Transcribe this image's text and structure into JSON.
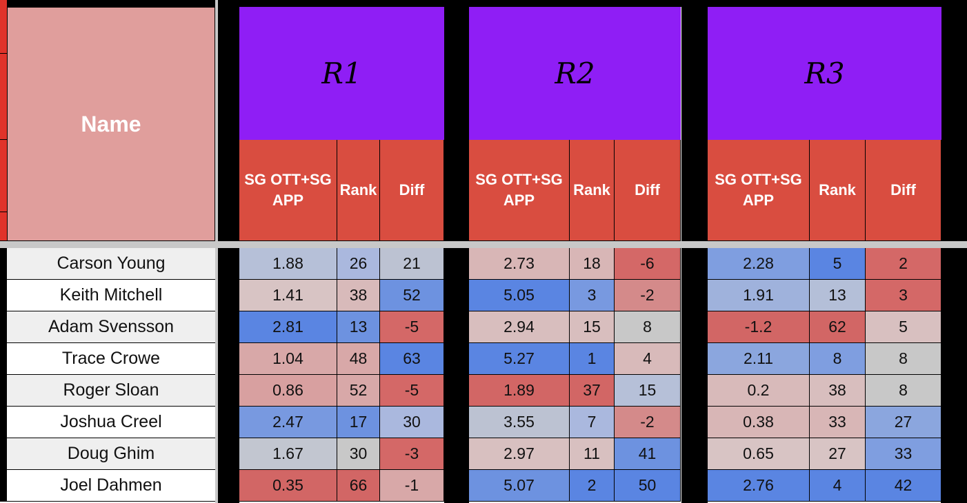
{
  "header": {
    "name_label": "Name",
    "rounds": [
      {
        "label": "R1",
        "sub": [
          "SG OTT+SG APP",
          "Rank",
          "Diff"
        ]
      },
      {
        "label": "R2",
        "sub": [
          "SG OTT+SG APP",
          "Rank",
          "Diff"
        ]
      },
      {
        "label": "R3",
        "sub": [
          "SG OTT+SG APP",
          "Rank",
          "Diff"
        ]
      }
    ]
  },
  "colors": {
    "purple": "#8f1ef5",
    "subheader_red": "#d94d40",
    "name_header_pink": "#e09e9c",
    "strongest_blue": "#5a85e2",
    "strongest_red": "#d26665"
  },
  "rows": [
    {
      "name": "Carson Young",
      "rounds": [
        {
          "sg": "1.88",
          "rank": "26",
          "diff": "21"
        },
        {
          "sg": "2.73",
          "rank": "18",
          "diff": "-6"
        },
        {
          "sg": "2.28",
          "rank": "5",
          "diff": "2"
        }
      ]
    },
    {
      "name": "Keith Mitchell",
      "rounds": [
        {
          "sg": "1.41",
          "rank": "38",
          "diff": "52"
        },
        {
          "sg": "5.05",
          "rank": "3",
          "diff": "-2"
        },
        {
          "sg": "1.91",
          "rank": "13",
          "diff": "3"
        }
      ]
    },
    {
      "name": "Adam Svensson",
      "rounds": [
        {
          "sg": "2.81",
          "rank": "13",
          "diff": "-5"
        },
        {
          "sg": "2.94",
          "rank": "15",
          "diff": "8"
        },
        {
          "sg": "-1.2",
          "rank": "62",
          "diff": "5"
        }
      ]
    },
    {
      "name": "Trace Crowe",
      "rounds": [
        {
          "sg": "1.04",
          "rank": "48",
          "diff": "63"
        },
        {
          "sg": "5.27",
          "rank": "1",
          "diff": "4"
        },
        {
          "sg": "2.11",
          "rank": "8",
          "diff": "8"
        }
      ]
    },
    {
      "name": "Roger Sloan",
      "rounds": [
        {
          "sg": "0.86",
          "rank": "52",
          "diff": "-5"
        },
        {
          "sg": "1.89",
          "rank": "37",
          "diff": "15"
        },
        {
          "sg": "0.2",
          "rank": "38",
          "diff": "8"
        }
      ]
    },
    {
      "name": "Joshua Creel",
      "rounds": [
        {
          "sg": "2.47",
          "rank": "17",
          "diff": "30"
        },
        {
          "sg": "3.55",
          "rank": "7",
          "diff": "-2"
        },
        {
          "sg": "0.38",
          "rank": "33",
          "diff": "27"
        }
      ]
    },
    {
      "name": "Doug Ghim",
      "rounds": [
        {
          "sg": "1.67",
          "rank": "30",
          "diff": "-3"
        },
        {
          "sg": "2.97",
          "rank": "11",
          "diff": "41"
        },
        {
          "sg": "0.65",
          "rank": "27",
          "diff": "33"
        }
      ]
    },
    {
      "name": "Joel Dahmen",
      "rounds": [
        {
          "sg": "0.35",
          "rank": "66",
          "diff": "-1"
        },
        {
          "sg": "5.07",
          "rank": "2",
          "diff": "50"
        },
        {
          "sg": "2.76",
          "rank": "4",
          "diff": "42"
        }
      ]
    }
  ],
  "cell_colors": [
    [
      [
        "#b6c0d8",
        "#aab8de",
        "#bcc2d2"
      ],
      [
        "#d8b6b6",
        "#d8b6b6",
        "#d46867"
      ],
      [
        "#7f9ee0",
        "#5a85e2",
        "#d46867"
      ]
    ],
    [
      [
        "#d8c4c4",
        "#d8baba",
        "#6d92e0"
      ],
      [
        "#5a85e2",
        "#7899e0",
        "#d48a8a"
      ],
      [
        "#9fb2dc",
        "#b4bfd8",
        "#d46867"
      ]
    ],
    [
      [
        "#5a85e2",
        "#6d92e0",
        "#d46867"
      ],
      [
        "#d8bebe",
        "#d8bebe",
        "#c8c8c8"
      ],
      [
        "#d26665",
        "#d26665",
        "#d8c0c0"
      ]
    ],
    [
      [
        "#d8a8a8",
        "#d8a8a8",
        "#5a85e2"
      ],
      [
        "#5a85e2",
        "#5a85e2",
        "#d8baba"
      ],
      [
        "#8ba6de",
        "#7f9ee0",
        "#c8c8c8"
      ]
    ],
    [
      [
        "#d8a0a0",
        "#d8a8a8",
        "#d46867"
      ],
      [
        "#d26665",
        "#d26665",
        "#b6c0d8"
      ],
      [
        "#d8baba",
        "#d8bebe",
        "#c8c8c8"
      ]
    ],
    [
      [
        "#7899e0",
        "#6d92e0",
        "#aab8de"
      ],
      [
        "#bcc2d2",
        "#aab8de",
        "#d48a8a"
      ],
      [
        "#d8b6b6",
        "#d8b6b6",
        "#8ba6de"
      ]
    ],
    [
      [
        "#c2c6d0",
        "#c8c8c8",
        "#d46867"
      ],
      [
        "#d8c0c0",
        "#d8c0c0",
        "#6d92e0"
      ],
      [
        "#d8c4c4",
        "#d8c4c4",
        "#7f9ee0"
      ]
    ],
    [
      [
        "#d26665",
        "#d26665",
        "#d8a8a8"
      ],
      [
        "#6d92e0",
        "#5a85e2",
        "#5a85e2"
      ],
      [
        "#5a85e2",
        "#5a85e2",
        "#5a85e2"
      ]
    ]
  ]
}
